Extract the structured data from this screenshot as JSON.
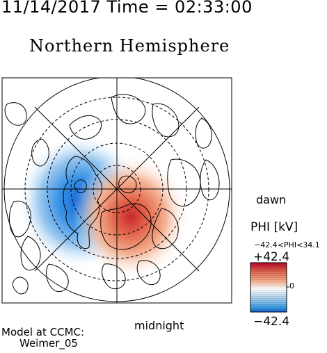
{
  "header": {
    "timestamp": "11/14/2017 Time = 02:33:00",
    "title": "Northern Hemisphere"
  },
  "map": {
    "hemisphere": "north",
    "projection": "polar",
    "concentric_circles": 4,
    "meridian_lines": 4,
    "potential_field": {
      "negative_cell": {
        "sign": "negative",
        "side": "dusk",
        "peak_kv": -42.4
      },
      "positive_cell": {
        "sign": "positive",
        "side": "dawn",
        "peak_kv": 34.1
      }
    }
  },
  "orientation_labels": {
    "dawn": "dawn",
    "midnight": "midnight"
  },
  "colorbar": {
    "title": "PHI [kV]",
    "range_text": "−42.4<PHI<34.1",
    "max_label": "+42.4",
    "min_label": "−42.4",
    "zero_label": "0",
    "colormap": [
      "#b40426",
      "#e0654d",
      "#f5a886",
      "#f4dccf",
      "#ffffff",
      "#cfe3f5",
      "#8ec5ee",
      "#3d9be3",
      "#1463d6"
    ]
  },
  "credits": {
    "line1": "Model at CCMC:",
    "line2": "Weimer_05"
  }
}
